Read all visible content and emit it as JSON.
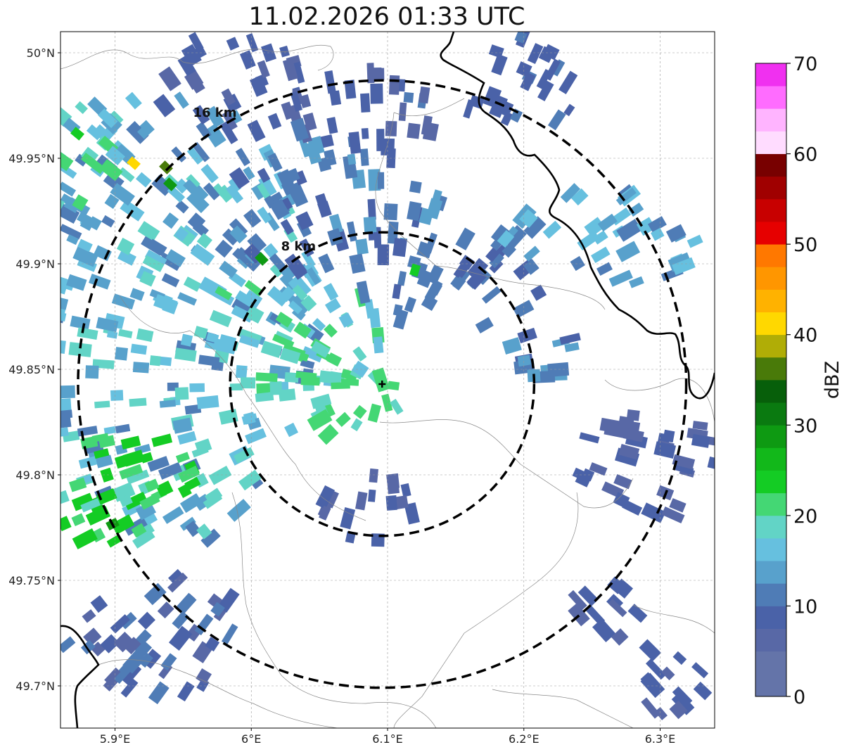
{
  "title": "11.02.2026 01:33 UTC",
  "map": {
    "lat_ticks": [
      {
        "value": 50.0,
        "label": "50°N"
      },
      {
        "value": 49.95,
        "label": "49.95°N"
      },
      {
        "value": 49.9,
        "label": "49.9°N"
      },
      {
        "value": 49.85,
        "label": "49.85°N"
      },
      {
        "value": 49.8,
        "label": "49.8°N"
      },
      {
        "value": 49.75,
        "label": "49.75°N"
      },
      {
        "value": 49.7,
        "label": "49.7°N"
      }
    ],
    "lon_ticks": [
      {
        "value": 5.9,
        "label": "5.9°E"
      },
      {
        "value": 6.0,
        "label": "6°E"
      },
      {
        "value": 6.1,
        "label": "6.1°E"
      },
      {
        "value": 6.2,
        "label": "6.2°E"
      },
      {
        "value": 6.3,
        "label": "6.3°E"
      }
    ],
    "lon_range": [
      5.86,
      6.34
    ],
    "lat_range": [
      49.68,
      50.01
    ],
    "radar_site": {
      "lon": 6.096,
      "lat": 49.843
    },
    "range_rings": [
      {
        "km": 8,
        "label": "8 km"
      },
      {
        "km": 16,
        "label": "16 km"
      }
    ]
  },
  "colorbar": {
    "label": "dBZ",
    "min": 0,
    "max": 70,
    "ticks": [
      0,
      10,
      20,
      30,
      40,
      50,
      60,
      70
    ],
    "tick_labels": [
      "0",
      "10",
      "20",
      "30",
      "40",
      "50",
      "60",
      "70"
    ],
    "colors": [
      "#6474a9",
      "#5868a6",
      "#4a62a8",
      "#4f7cb6",
      "#58a1cc",
      "#66c0df",
      "#62d4c6",
      "#44d774",
      "#14cc24",
      "#12b81a",
      "#0e9a12",
      "#0a7a10",
      "#075f0a",
      "#497a09",
      "#b0ad06",
      "#ffd800",
      "#ffb200",
      "#ff9600",
      "#ff7800",
      "#e60000",
      "#c80000",
      "#a00000",
      "#780000",
      "#ffdcff",
      "#ffb4ff",
      "#ff6cff",
      "#f030f0"
    ]
  }
}
